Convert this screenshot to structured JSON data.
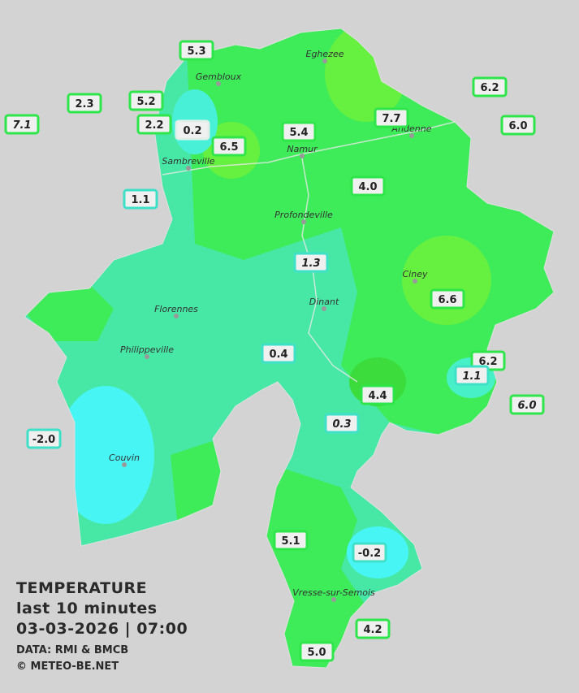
{
  "title": {
    "lines": [
      "TEMPERATURE",
      "last 10 minutes",
      "03-03-2026  |  07:00"
    ],
    "credits": [
      "DATA: RMI & BMCB",
      "© METEO-BE.NET"
    ]
  },
  "towns": [
    "Eghezee",
    "Gembloux",
    "Andenne",
    "Namur",
    "Sambreville",
    "Profondeville",
    "Ciney",
    "Dinant",
    "Florennes",
    "Philippeville",
    "Couvin",
    "Vresse-sur-Semois"
  ],
  "stations": [
    "5.3",
    "2.3",
    "5.2",
    "7.1",
    "2.2",
    "0.2",
    "6.5",
    "5.4",
    "7.7",
    "6.2",
    "6.0",
    "1.1",
    "4.0",
    "1.3",
    "6.6",
    "0.4",
    "6.2",
    "1.1",
    "6.0",
    "4.4",
    "0.3",
    "-2.0",
    "5.1",
    "-0.2",
    "4.2",
    "5.0"
  ]
}
